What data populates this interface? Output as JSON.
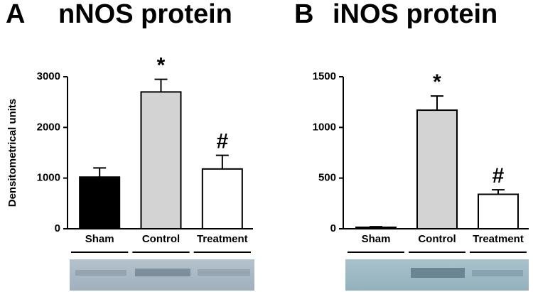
{
  "chart_data": [
    {
      "type": "bar",
      "panel": "A",
      "title": "nNOS protein",
      "y_label": "Densitometrical units",
      "categories": [
        "Sham",
        "Control",
        "Treatment"
      ],
      "values": [
        1020,
        2700,
        1180
      ],
      "errors": [
        180,
        250,
        270
      ],
      "colors": [
        "#000000",
        "#d3d3d3",
        "#ffffff"
      ],
      "annotations": [
        {
          "category": "Control",
          "text": "*"
        },
        {
          "category": "Treatment",
          "text": "#"
        }
      ],
      "ylim": [
        0,
        3000
      ],
      "yticks": [
        0,
        1000,
        2000,
        3000
      ]
    },
    {
      "type": "bar",
      "panel": "B",
      "title": "iNOS protein",
      "categories": [
        "Sham",
        "Control",
        "Treatment"
      ],
      "values": [
        15,
        1170,
        340
      ],
      "errors": [
        5,
        140,
        45
      ],
      "colors": [
        "#000000",
        "#d3d3d3",
        "#ffffff"
      ],
      "annotations": [
        {
          "category": "Control",
          "text": "*"
        },
        {
          "category": "Treatment",
          "text": "#"
        }
      ],
      "ylim": [
        0,
        1500
      ],
      "yticks": [
        0,
        500,
        1000,
        1500
      ]
    }
  ]
}
